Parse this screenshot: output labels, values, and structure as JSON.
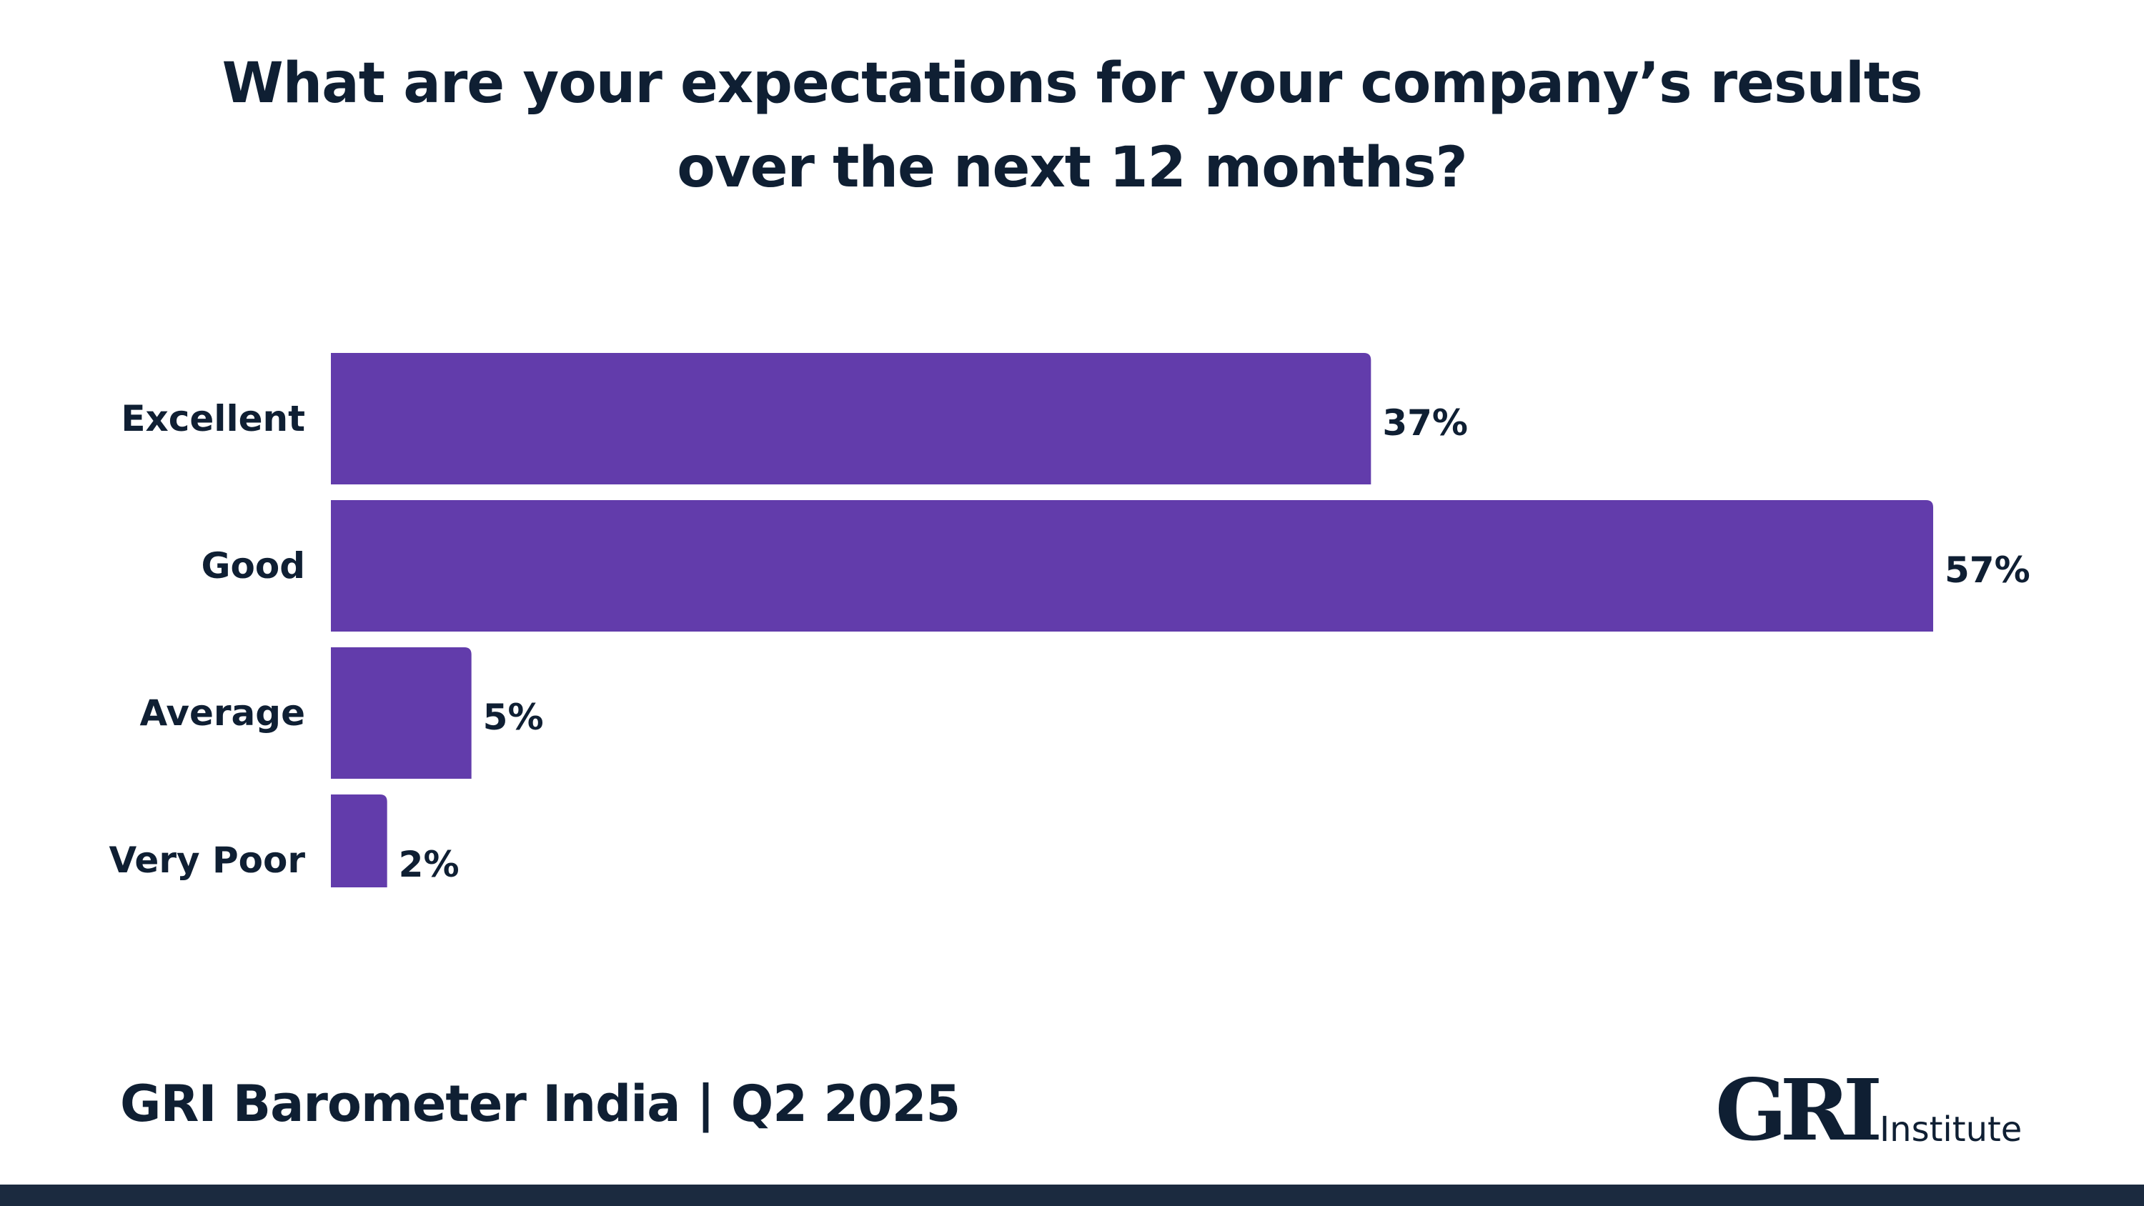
{
  "title": {
    "line1": "What are your expectations for your company’s results",
    "line2": "over the next 12 months?"
  },
  "chart_data": {
    "type": "bar",
    "orientation": "horizontal",
    "categories": [
      "Excellent",
      "Good",
      "Average",
      "Very Poor"
    ],
    "values": [
      37,
      57,
      5,
      2
    ],
    "value_labels": [
      "37%",
      "57%",
      "5%",
      "2%"
    ],
    "unit": "%",
    "xlim": [
      0,
      57
    ],
    "grid": false,
    "legend": "none",
    "bar_color": "#623cab"
  },
  "footer": {
    "label": "GRI Barometer India | Q2 2025"
  },
  "logo": {
    "mark": "GRI",
    "text": "Institute",
    "color": "#0f1f33"
  },
  "colors": {
    "text": "#0f1f33",
    "bar": "#623cab",
    "bottom_bar": "#1b2a3f"
  }
}
